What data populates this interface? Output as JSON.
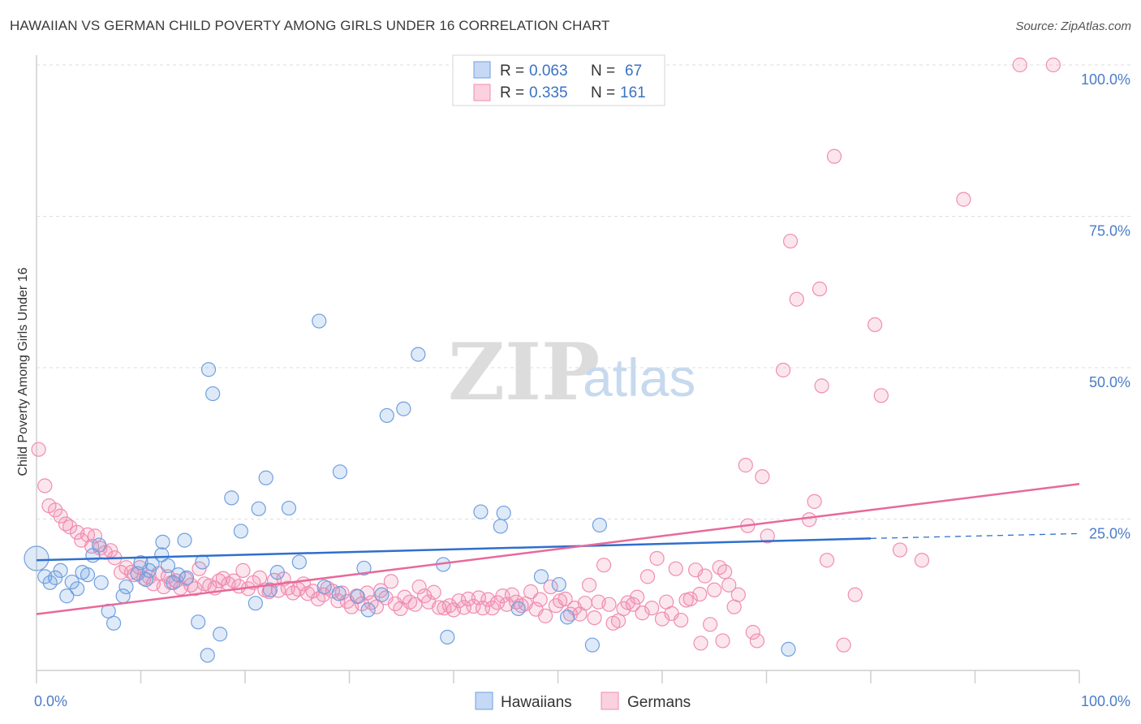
{
  "title": "HAWAIIAN VS GERMAN CHILD POVERTY AMONG GIRLS UNDER 16 CORRELATION CHART",
  "source": "Source: ZipAtlas.com",
  "watermark": {
    "zip": "ZIP",
    "atlas": "atlas"
  },
  "legend_top": [
    {
      "r_label": "R =",
      "r_value": "0.063",
      "n_label": "N =",
      "n_value": "67",
      "color": "#6f9fe0"
    },
    {
      "r_label": "R =",
      "r_value": "0.335",
      "n_label": "N =",
      "n_value": "161",
      "color": "#f08db0"
    }
  ],
  "legend_bottom": [
    {
      "label": "Hawaiians",
      "color": "#6f9fe0"
    },
    {
      "label": "Germans",
      "color": "#f08db0"
    }
  ],
  "chart_data": {
    "type": "scatter",
    "title": "HAWAIIAN VS GERMAN CHILD POVERTY AMONG GIRLS UNDER 16 CORRELATION CHART",
    "xlabel": "",
    "ylabel": "Child Poverty Among Girls Under 16",
    "xlim": [
      0,
      100
    ],
    "ylim": [
      0,
      100
    ],
    "x_tick_labels": [
      "0.0%",
      "100.0%"
    ],
    "y_tick_labels": [
      "25.0%",
      "50.0%",
      "75.0%",
      "100.0%"
    ],
    "y_ticks": [
      25,
      50,
      75,
      100
    ],
    "grid": true,
    "legend_position": "top-center",
    "series": [
      {
        "name": "Hawaiians",
        "color": "#6f9fe0",
        "trend": {
          "x0": 0,
          "y0": 18.2,
          "x1": 80,
          "y1": 21.8,
          "dashed_to_x": 100,
          "dashed_to_y": 22.6
        },
        "points": [
          [
            0.0,
            18.5
          ],
          [
            0.8,
            15.5
          ],
          [
            1.3,
            14.5
          ],
          [
            1.8,
            15.3
          ],
          [
            2.3,
            16.5
          ],
          [
            2.9,
            12.3
          ],
          [
            3.4,
            14.6
          ],
          [
            3.9,
            13.5
          ],
          [
            4.4,
            16.2
          ],
          [
            4.9,
            15.8
          ],
          [
            5.4,
            19.0
          ],
          [
            6.0,
            20.7
          ],
          [
            6.2,
            14.5
          ],
          [
            6.9,
            9.8
          ],
          [
            7.4,
            7.8
          ],
          [
            8.3,
            12.3
          ],
          [
            8.6,
            13.8
          ],
          [
            9.7,
            16.0
          ],
          [
            10.0,
            17.8
          ],
          [
            10.5,
            15.0
          ],
          [
            10.8,
            16.5
          ],
          [
            11.1,
            17.6
          ],
          [
            12.0,
            19.1
          ],
          [
            12.1,
            21.2
          ],
          [
            12.6,
            17.3
          ],
          [
            13.1,
            14.5
          ],
          [
            13.6,
            15.8
          ],
          [
            14.2,
            21.5
          ],
          [
            14.4,
            15.3
          ],
          [
            15.5,
            8.0
          ],
          [
            15.9,
            17.9
          ],
          [
            16.4,
            2.5
          ],
          [
            16.5,
            49.7
          ],
          [
            16.9,
            45.7
          ],
          [
            17.6,
            6.0
          ],
          [
            18.7,
            28.5
          ],
          [
            19.6,
            23.0
          ],
          [
            21.0,
            11.1
          ],
          [
            21.3,
            26.7
          ],
          [
            22.0,
            31.8
          ],
          [
            22.4,
            13.3
          ],
          [
            23.1,
            16.2
          ],
          [
            24.2,
            26.8
          ],
          [
            25.2,
            17.9
          ],
          [
            27.1,
            57.7
          ],
          [
            27.6,
            13.8
          ],
          [
            29.0,
            12.7
          ],
          [
            29.1,
            32.8
          ],
          [
            30.8,
            12.2
          ],
          [
            31.4,
            16.9
          ],
          [
            31.8,
            10.0
          ],
          [
            33.1,
            12.5
          ],
          [
            33.6,
            42.1
          ],
          [
            35.2,
            43.2
          ],
          [
            36.6,
            52.2
          ],
          [
            39.0,
            17.5
          ],
          [
            39.4,
            5.5
          ],
          [
            42.6,
            26.2
          ],
          [
            44.5,
            23.8
          ],
          [
            44.8,
            26.0
          ],
          [
            46.2,
            10.2
          ],
          [
            48.4,
            15.5
          ],
          [
            50.1,
            14.2
          ],
          [
            50.9,
            8.8
          ],
          [
            53.3,
            4.2
          ],
          [
            54.0,
            24.0
          ],
          [
            72.1,
            3.5
          ]
        ]
      },
      {
        "name": "Germans",
        "color": "#f08db0",
        "trend": {
          "x0": 0,
          "y0": 9.3,
          "x1": 100,
          "y1": 30.8
        },
        "points": [
          [
            0.2,
            36.5
          ],
          [
            0.8,
            30.5
          ],
          [
            1.2,
            27.2
          ],
          [
            1.8,
            26.5
          ],
          [
            2.3,
            25.5
          ],
          [
            2.8,
            24.2
          ],
          [
            3.2,
            23.7
          ],
          [
            3.9,
            22.8
          ],
          [
            4.3,
            21.5
          ],
          [
            4.9,
            22.4
          ],
          [
            5.3,
            20.5
          ],
          [
            5.6,
            22.2
          ],
          [
            6.1,
            20.2
          ],
          [
            6.6,
            19.5
          ],
          [
            7.1,
            19.8
          ],
          [
            7.5,
            18.6
          ],
          [
            8.1,
            16.2
          ],
          [
            8.6,
            17.0
          ],
          [
            9.1,
            16.2
          ],
          [
            9.4,
            15.8
          ],
          [
            9.9,
            17.0
          ],
          [
            10.3,
            15.2
          ],
          [
            10.8,
            15.4
          ],
          [
            11.2,
            14.3
          ],
          [
            11.7,
            16.0
          ],
          [
            12.2,
            13.8
          ],
          [
            12.6,
            15.5
          ],
          [
            12.9,
            14.5
          ],
          [
            13.4,
            14.8
          ],
          [
            13.8,
            13.6
          ],
          [
            14.3,
            15.1
          ],
          [
            14.8,
            14.1
          ],
          [
            15.2,
            13.5
          ],
          [
            15.6,
            16.8
          ],
          [
            16.1,
            14.3
          ],
          [
            16.6,
            14.0
          ],
          [
            17.1,
            13.6
          ],
          [
            17.5,
            14.8
          ],
          [
            17.9,
            15.2
          ],
          [
            18.4,
            14.3
          ],
          [
            18.9,
            14.8
          ],
          [
            19.4,
            13.9
          ],
          [
            19.8,
            16.5
          ],
          [
            20.3,
            13.5
          ],
          [
            20.8,
            14.5
          ],
          [
            21.4,
            15.3
          ],
          [
            21.9,
            13.3
          ],
          [
            22.3,
            13.0
          ],
          [
            22.8,
            14.9
          ],
          [
            23.2,
            13.2
          ],
          [
            23.7,
            15.1
          ],
          [
            24.1,
            13.6
          ],
          [
            24.6,
            12.8
          ],
          [
            25.1,
            13.4
          ],
          [
            25.6,
            14.3
          ],
          [
            26.0,
            12.7
          ],
          [
            26.5,
            13.1
          ],
          [
            27.0,
            11.8
          ],
          [
            27.5,
            12.5
          ],
          [
            27.9,
            13.6
          ],
          [
            28.4,
            13.1
          ],
          [
            28.9,
            11.5
          ],
          [
            29.3,
            12.8
          ],
          [
            29.8,
            11.4
          ],
          [
            30.2,
            10.5
          ],
          [
            30.7,
            12.3
          ],
          [
            31.2,
            11.0
          ],
          [
            31.7,
            12.8
          ],
          [
            32.1,
            11.2
          ],
          [
            32.6,
            10.5
          ],
          [
            33.0,
            13.2
          ],
          [
            33.5,
            12.0
          ],
          [
            34.0,
            14.7
          ],
          [
            34.4,
            11.0
          ],
          [
            34.9,
            10.2
          ],
          [
            35.3,
            12.1
          ],
          [
            35.8,
            11.3
          ],
          [
            36.3,
            10.9
          ],
          [
            36.7,
            13.8
          ],
          [
            37.2,
            12.3
          ],
          [
            37.6,
            11.3
          ],
          [
            38.1,
            12.9
          ],
          [
            38.6,
            10.4
          ],
          [
            39.1,
            10.3
          ],
          [
            39.6,
            10.7
          ],
          [
            40.0,
            10.0
          ],
          [
            40.5,
            11.5
          ],
          [
            41.0,
            10.4
          ],
          [
            41.4,
            11.8
          ],
          [
            41.9,
            10.6
          ],
          [
            42.4,
            12.0
          ],
          [
            42.8,
            10.3
          ],
          [
            43.3,
            11.7
          ],
          [
            43.7,
            10.3
          ],
          [
            44.2,
            11.2
          ],
          [
            44.7,
            12.3
          ],
          [
            45.1,
            10.9
          ],
          [
            45.6,
            12.5
          ],
          [
            46.0,
            11.3
          ],
          [
            46.5,
            10.7
          ],
          [
            46.9,
            11.0
          ],
          [
            47.4,
            13.0
          ],
          [
            47.9,
            10.1
          ],
          [
            48.3,
            11.7
          ],
          [
            48.8,
            9.0
          ],
          [
            49.3,
            13.8
          ],
          [
            49.8,
            10.7
          ],
          [
            50.2,
            11.5
          ],
          [
            50.7,
            11.8
          ],
          [
            51.2,
            9.3
          ],
          [
            51.6,
            10.3
          ],
          [
            52.1,
            9.3
          ],
          [
            52.6,
            11.1
          ],
          [
            53.0,
            14.1
          ],
          [
            53.5,
            8.7
          ],
          [
            53.9,
            11.3
          ],
          [
            54.4,
            17.4
          ],
          [
            54.9,
            10.9
          ],
          [
            55.3,
            7.8
          ],
          [
            55.8,
            8.2
          ],
          [
            56.3,
            10.2
          ],
          [
            56.7,
            11.2
          ],
          [
            57.2,
            10.9
          ],
          [
            57.6,
            12.1
          ],
          [
            58.1,
            9.5
          ],
          [
            58.6,
            15.5
          ],
          [
            59.0,
            10.3
          ],
          [
            59.5,
            18.5
          ],
          [
            60.0,
            8.5
          ],
          [
            60.4,
            11.3
          ],
          [
            60.9,
            9.4
          ],
          [
            61.3,
            16.8
          ],
          [
            61.8,
            8.3
          ],
          [
            62.3,
            11.6
          ],
          [
            62.7,
            11.8
          ],
          [
            63.2,
            16.6
          ],
          [
            63.6,
            12.6
          ],
          [
            64.1,
            15.6
          ],
          [
            64.6,
            7.6
          ],
          [
            65.0,
            13.3
          ],
          [
            65.5,
            17.0
          ],
          [
            66.0,
            16.3
          ],
          [
            66.4,
            14.1
          ],
          [
            66.9,
            10.5
          ],
          [
            67.3,
            12.5
          ],
          [
            68.2,
            23.9
          ],
          [
            68.7,
            6.3
          ],
          [
            69.1,
            4.9
          ],
          [
            69.6,
            32.0
          ],
          [
            70.1,
            22.2
          ],
          [
            68.0,
            33.9
          ],
          [
            72.3,
            70.9
          ],
          [
            72.9,
            61.3
          ],
          [
            71.6,
            49.6
          ],
          [
            74.6,
            27.9
          ],
          [
            74.1,
            24.9
          ],
          [
            75.1,
            63.0
          ],
          [
            75.3,
            47.0
          ],
          [
            75.8,
            18.2
          ],
          [
            76.5,
            84.9
          ],
          [
            77.4,
            4.2
          ],
          [
            78.5,
            12.5
          ],
          [
            80.4,
            57.1
          ],
          [
            81.0,
            45.4
          ],
          [
            82.8,
            19.9
          ],
          [
            84.9,
            18.2
          ],
          [
            88.9,
            77.8
          ],
          [
            97.5,
            100.0
          ],
          [
            94.3,
            100.0
          ],
          [
            65.8,
            4.9
          ],
          [
            63.7,
            4.5
          ]
        ]
      }
    ]
  }
}
